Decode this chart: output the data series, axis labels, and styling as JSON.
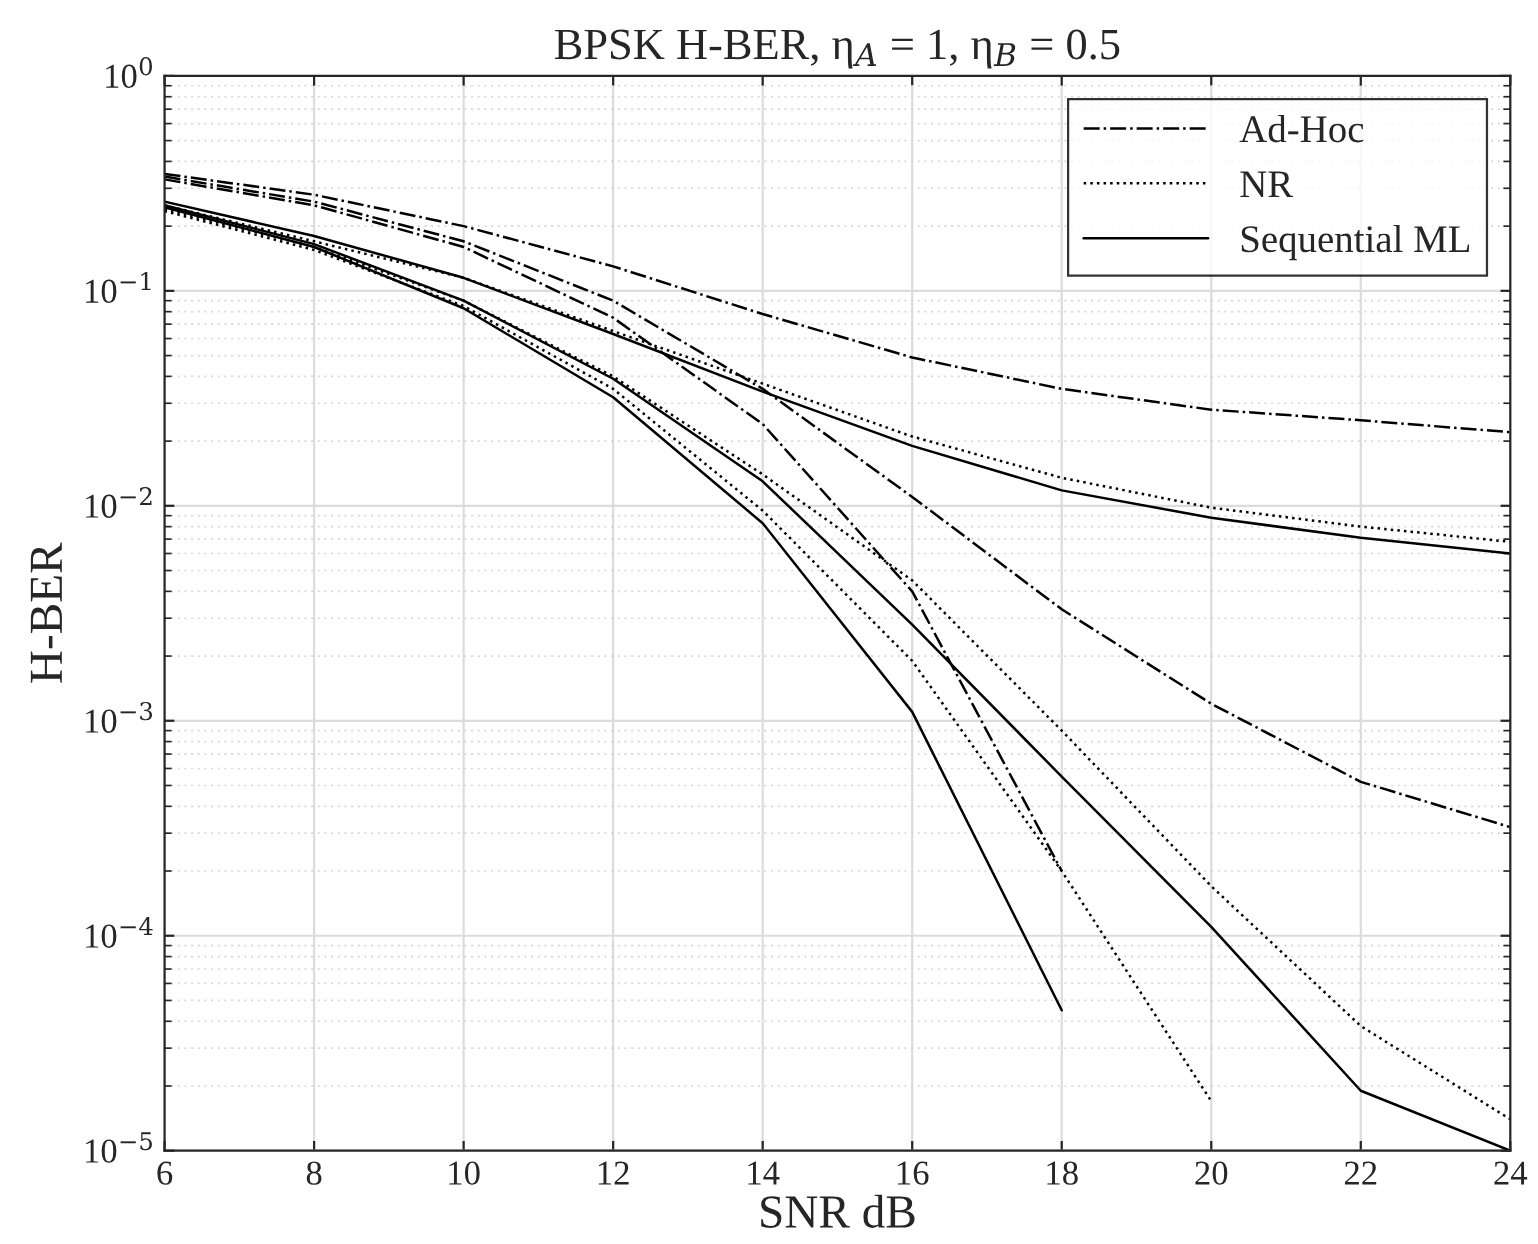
{
  "chart_data": {
    "type": "line",
    "title": "BPSK H-BER, η$_{A}$ = 1, η$_{B}$ = 0.5",
    "xlabel": "SNR dB",
    "ylabel": "H-BER",
    "log": "y",
    "grid": true,
    "legend": "top right",
    "marker": "none",
    "xlim": [
      6,
      24
    ],
    "xticks": [
      6,
      8,
      10,
      12,
      14,
      16,
      18,
      20,
      22,
      24
    ],
    "ylim": [
      1e-05,
      1
    ],
    "yticks": [
      {
        "value": 1e-05,
        "label": "10$^{−5}$"
      },
      {
        "value": 0.0001,
        "label": "10$^{−4}$"
      },
      {
        "value": 0.001,
        "label": "10$^{−3}$"
      },
      {
        "value": 0.01,
        "label": "10$^{−2}$"
      },
      {
        "value": 0.1,
        "label": "10$^{−1}$"
      },
      {
        "value": 1,
        "label": "10$^{0}$"
      }
    ],
    "series": [
      {
        "name": "Ad-Hoc",
        "color": "#000000",
        "line_style": "dashdot",
        "x": [
          6,
          8,
          10,
          12,
          14,
          16,
          18,
          20,
          22,
          24
        ],
        "values": [
          0.35,
          0.28,
          0.2,
          0.13,
          0.078,
          0.049,
          0.035,
          0.028,
          0.025,
          0.022
        ]
      },
      {
        "name": "NR",
        "color": "#000000",
        "line_style": "dotted",
        "x": [
          6,
          8,
          10,
          12,
          14,
          16,
          18,
          20,
          22,
          24
        ],
        "values": [
          0.25,
          0.17,
          0.115,
          0.065,
          0.037,
          0.021,
          0.0135,
          0.0098,
          0.008,
          0.0068
        ]
      },
      {
        "name": "Sequential ML",
        "color": "#000000",
        "line_style": "solid",
        "x": [
          6,
          8,
          10,
          12,
          14,
          16,
          18,
          20,
          22,
          24
        ],
        "values": [
          0.26,
          0.18,
          0.115,
          0.063,
          0.034,
          0.019,
          0.0118,
          0.0088,
          0.0071,
          0.006
        ]
      },
      {
        "color": "#000000",
        "line_style": "dashdot",
        "x": [
          6,
          8,
          10,
          12,
          14,
          16,
          18,
          20,
          22,
          24
        ],
        "values": [
          0.34,
          0.26,
          0.17,
          0.09,
          0.035,
          0.011,
          0.0033,
          0.0012,
          0.00052,
          0.00032
        ]
      },
      {
        "color": "#000000",
        "line_style": "dashdot",
        "x": [
          6,
          8,
          10,
          12,
          14,
          16,
          18
        ],
        "values": [
          0.33,
          0.25,
          0.16,
          0.075,
          0.024,
          0.004,
          0.0002
        ]
      },
      {
        "color": "#000000",
        "line_style": "dotted",
        "x": [
          6,
          8,
          10,
          12,
          14,
          16,
          18,
          20,
          22,
          24
        ],
        "values": [
          0.24,
          0.16,
          0.09,
          0.04,
          0.014,
          0.0045,
          0.0009,
          0.00017,
          3.8e-05,
          1.4e-05
        ]
      },
      {
        "color": "#000000",
        "line_style": "dotted",
        "x": [
          6,
          8,
          10,
          12,
          14,
          16,
          18,
          20
        ],
        "values": [
          0.235,
          0.155,
          0.085,
          0.035,
          0.0095,
          0.0019,
          0.0002,
          1.7e-05
        ]
      },
      {
        "color": "#000000",
        "line_style": "solid",
        "x": [
          6,
          8,
          10,
          12,
          14,
          16,
          18,
          20,
          22,
          24
        ],
        "values": [
          0.25,
          0.165,
          0.09,
          0.039,
          0.013,
          0.0028,
          0.00055,
          0.00011,
          1.9e-05,
          1e-05
        ]
      },
      {
        "color": "#000000",
        "line_style": "solid",
        "x": [
          6,
          8,
          10,
          12,
          14,
          16,
          18
        ],
        "values": [
          0.245,
          0.16,
          0.083,
          0.032,
          0.0083,
          0.0011,
          4.5e-05
        ]
      }
    ]
  }
}
